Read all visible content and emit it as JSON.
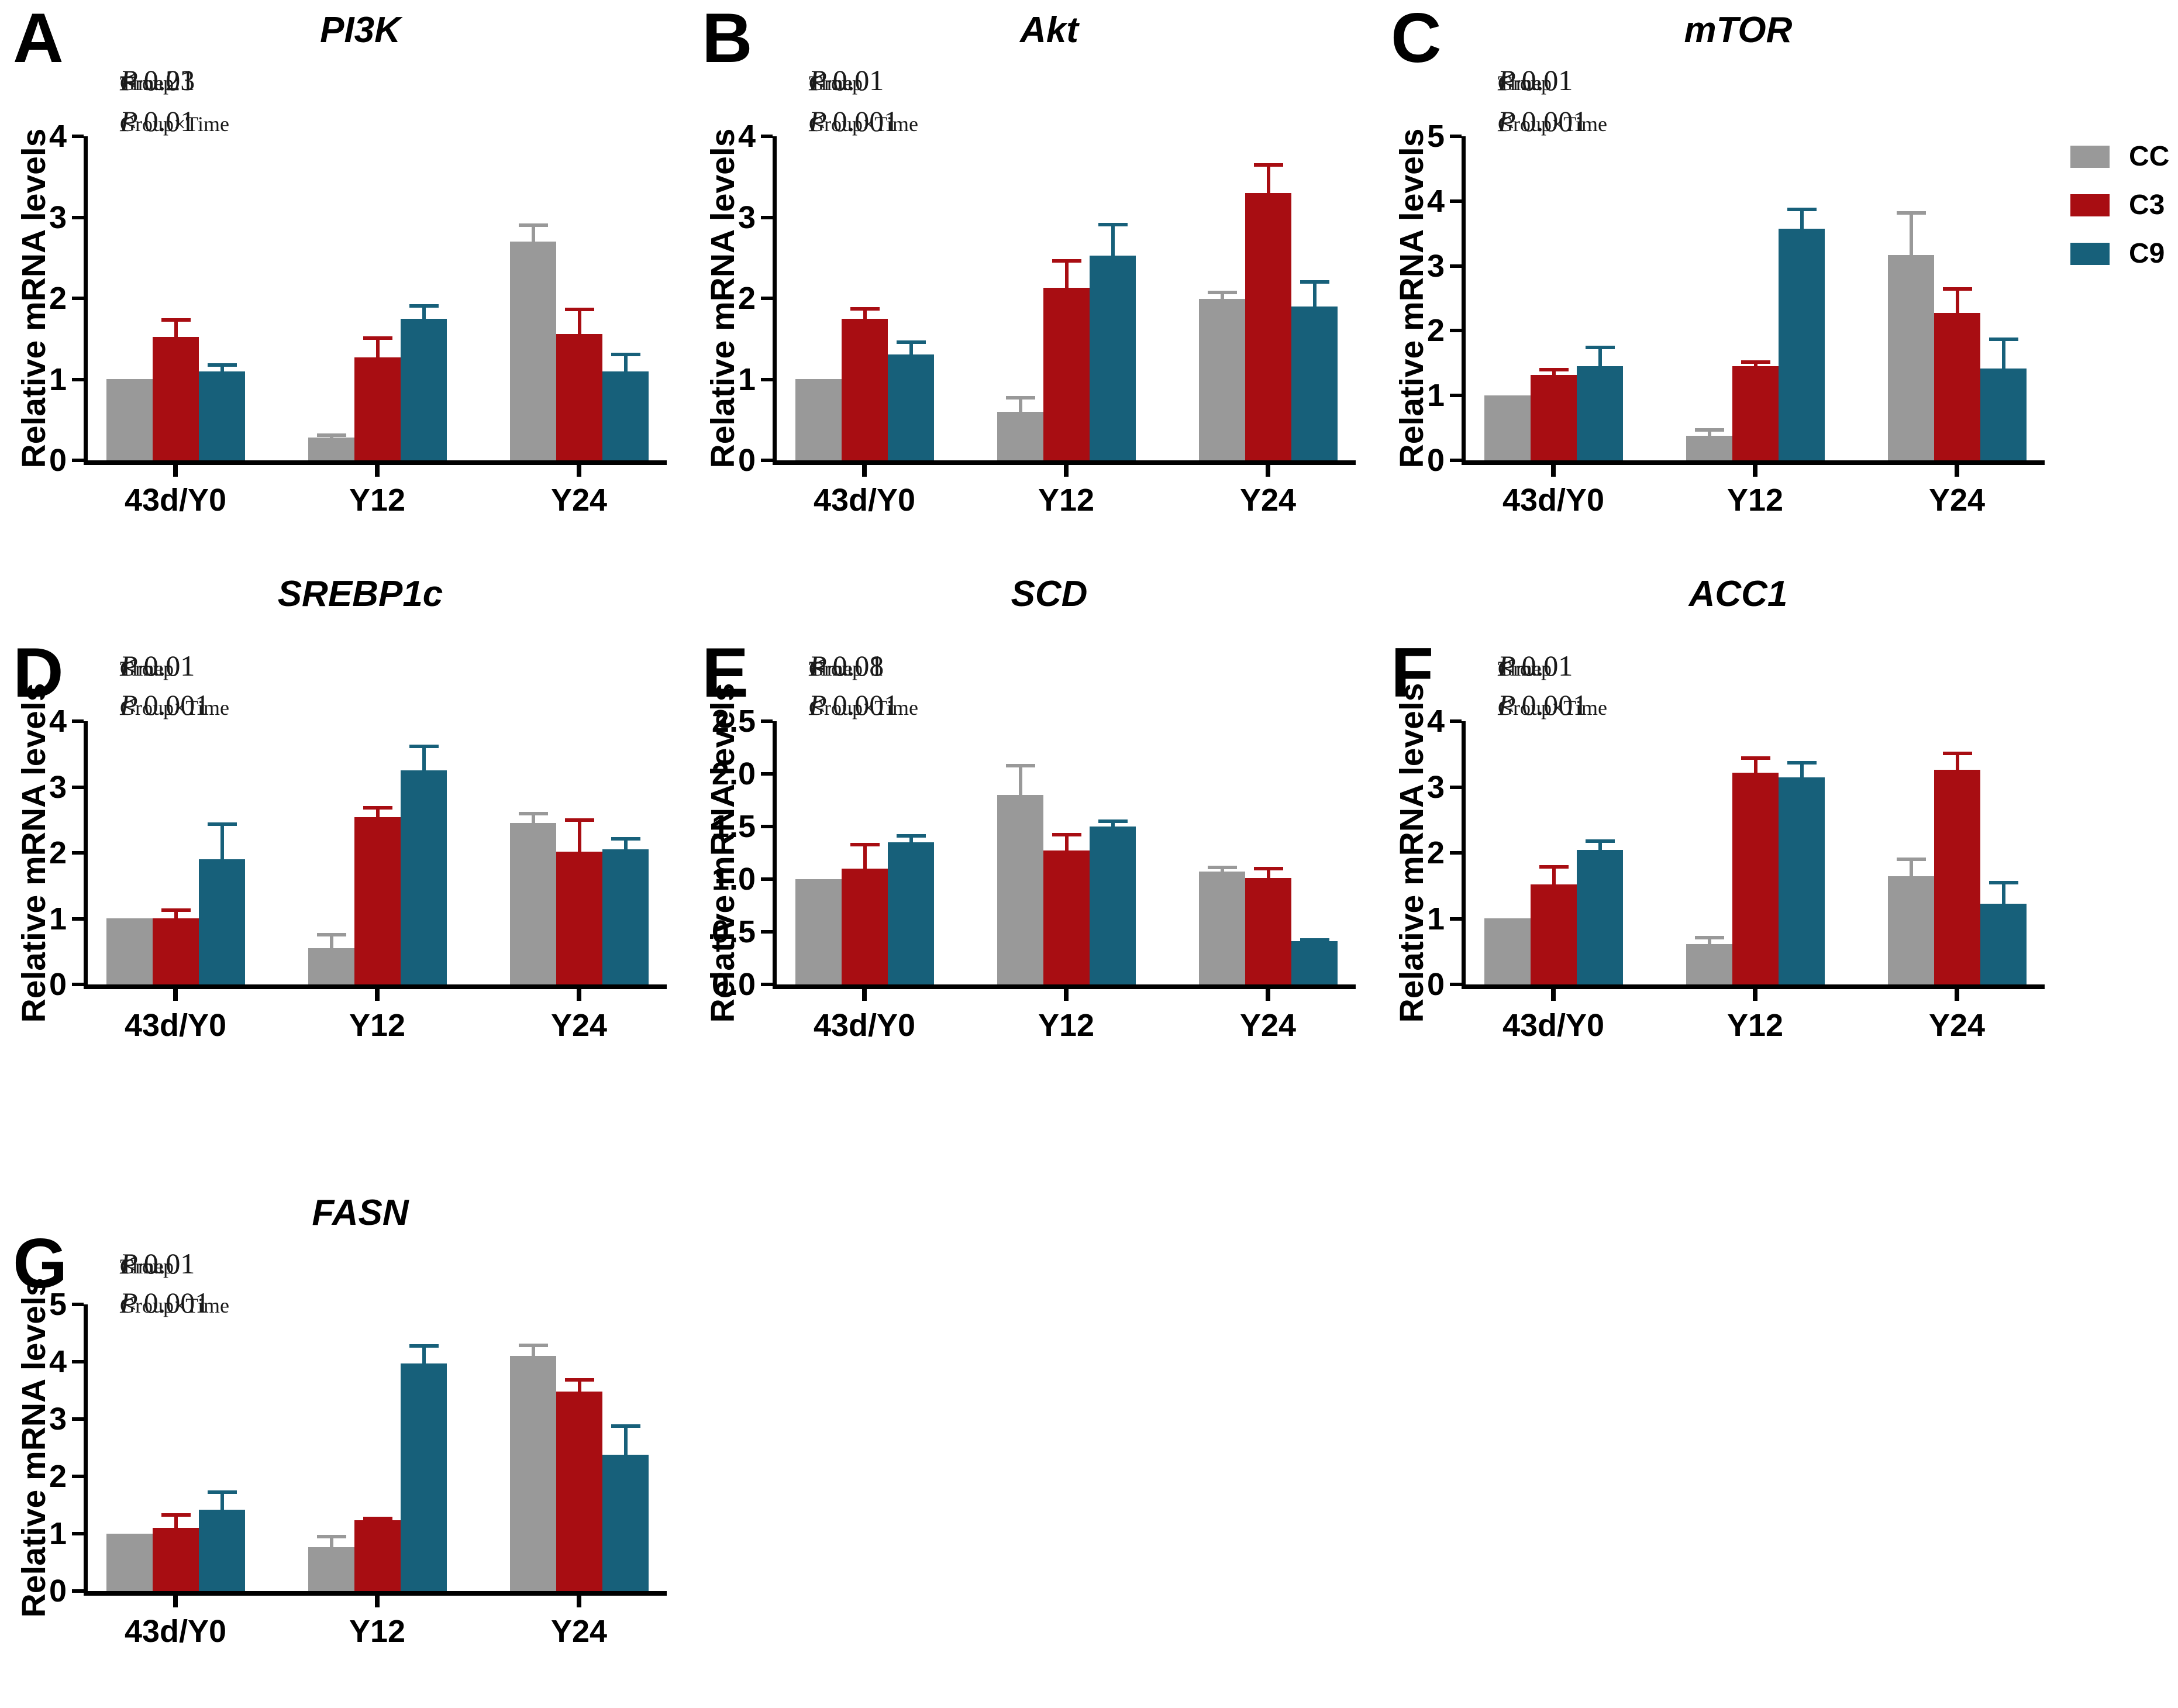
{
  "figure": {
    "p_subscripts": {
      "group": "Group",
      "time": "Time",
      "interaction": "Group×Time"
    },
    "p_symbol": "P"
  },
  "legend": {
    "items": [
      {
        "label": "CC",
        "color": "#999999"
      },
      {
        "label": "C3",
        "color": "#A80D12"
      },
      {
        "label": "C9",
        "color": "#17607A"
      }
    ]
  },
  "chart_data": [
    {
      "type": "bar",
      "letter": "A",
      "title": "PI3K",
      "ylabel": "Relative mRNA levels",
      "ylim": [
        0,
        4
      ],
      "ytick_step": 1,
      "ytick_labels": [
        "0",
        "1",
        "2",
        "3",
        "4"
      ],
      "categories": [
        "43d/Y0",
        "Y12",
        "Y24"
      ],
      "p_values": {
        "group": "< 0.01",
        "time": "= 0.23",
        "interaction": "< 0.01"
      },
      "series": [
        {
          "name": "CC",
          "color": "#999999",
          "values": [
            1.0,
            0.28,
            2.7
          ],
          "errors": [
            0,
            0.03,
            0.2
          ]
        },
        {
          "name": "C3",
          "color": "#A80D12",
          "values": [
            1.52,
            1.27,
            1.56
          ],
          "errors": [
            0.21,
            0.24,
            0.3
          ]
        },
        {
          "name": "C9",
          "color": "#17607A",
          "values": [
            1.1,
            1.75,
            1.1
          ],
          "errors": [
            0.08,
            0.16,
            0.21
          ]
        }
      ]
    },
    {
      "type": "bar",
      "letter": "B",
      "title": "Akt",
      "ylabel": "Relative mRNA levels",
      "ylim": [
        0,
        4
      ],
      "ytick_step": 1,
      "ytick_labels": [
        "0",
        "1",
        "2",
        "3",
        "4"
      ],
      "categories": [
        "43d/Y0",
        "Y12",
        "Y24"
      ],
      "p_values": {
        "group": "< 0.01",
        "time": "< 0.01",
        "interaction": "< 0.001"
      },
      "series": [
        {
          "name": "CC",
          "color": "#999999",
          "values": [
            1.0,
            0.6,
            1.99
          ],
          "errors": [
            0,
            0.17,
            0.08
          ]
        },
        {
          "name": "C3",
          "color": "#A80D12",
          "values": [
            1.75,
            2.13,
            3.3
          ],
          "errors": [
            0.12,
            0.33,
            0.35
          ]
        },
        {
          "name": "C9",
          "color": "#17607A",
          "values": [
            1.31,
            2.53,
            1.9
          ],
          "errors": [
            0.15,
            0.38,
            0.3
          ]
        }
      ]
    },
    {
      "type": "bar",
      "letter": "C",
      "title": "mTOR",
      "ylabel": "Relative mRNA levels",
      "ylim": [
        0,
        5
      ],
      "ytick_step": 1,
      "ytick_labels": [
        "0",
        "1",
        "2",
        "3",
        "4",
        "5"
      ],
      "categories": [
        "43d/Y0",
        "Y12",
        "Y24"
      ],
      "p_values": {
        "group": "< 0.01",
        "time": "< 0.01",
        "interaction": "< 0.001"
      },
      "series": [
        {
          "name": "CC",
          "color": "#999999",
          "values": [
            1.0,
            0.38,
            3.17
          ],
          "errors": [
            0,
            0.09,
            0.65
          ]
        },
        {
          "name": "C3",
          "color": "#A80D12",
          "values": [
            1.32,
            1.45,
            2.27
          ],
          "errors": [
            0.08,
            0.06,
            0.37
          ]
        },
        {
          "name": "C9",
          "color": "#17607A",
          "values": [
            1.45,
            3.57,
            1.42
          ],
          "errors": [
            0.29,
            0.3,
            0.45
          ]
        }
      ]
    },
    {
      "type": "bar",
      "letter": "D",
      "title": "SREBP1c",
      "ylabel": "Relative mRNA levels",
      "ylim": [
        0,
        4
      ],
      "ytick_step": 1,
      "ytick_labels": [
        "0",
        "1",
        "2",
        "3",
        "4"
      ],
      "categories": [
        "43d/Y0",
        "Y12",
        "Y24"
      ],
      "p_values": {
        "group": "< 0.01",
        "time": "< 0.01",
        "interaction": "< 0.001"
      },
      "series": [
        {
          "name": "CC",
          "color": "#999999",
          "values": [
            1.0,
            0.55,
            2.45
          ],
          "errors": [
            0,
            0.2,
            0.14
          ]
        },
        {
          "name": "C3",
          "color": "#A80D12",
          "values": [
            1.0,
            2.54,
            2.02
          ],
          "errors": [
            0.12,
            0.14,
            0.48
          ]
        },
        {
          "name": "C9",
          "color": "#17607A",
          "values": [
            1.9,
            3.25,
            2.05
          ],
          "errors": [
            0.53,
            0.36,
            0.16
          ]
        }
      ]
    },
    {
      "type": "bar",
      "letter": "E",
      "title": "SCD",
      "ylabel": "Relative mRNA levels",
      "ylim": [
        0,
        2.5
      ],
      "ytick_step": 0.5,
      "ytick_labels": [
        "0.0",
        "0.5",
        "1.0",
        "1.5",
        "2.0",
        "2.5"
      ],
      "categories": [
        "43d/Y0",
        "Y12",
        "Y24"
      ],
      "p_values": {
        "group": "< 0.01",
        "time": "= 0.08",
        "interaction": "< 0.001"
      },
      "series": [
        {
          "name": "CC",
          "color": "#999999",
          "values": [
            1.0,
            1.8,
            1.07
          ],
          "errors": [
            0,
            0.28,
            0.04
          ]
        },
        {
          "name": "C3",
          "color": "#A80D12",
          "values": [
            1.1,
            1.27,
            1.01
          ],
          "errors": [
            0.23,
            0.15,
            0.09
          ]
        },
        {
          "name": "C9",
          "color": "#17607A",
          "values": [
            1.35,
            1.5,
            0.41
          ],
          "errors": [
            0.06,
            0.05,
            0.01
          ]
        }
      ]
    },
    {
      "type": "bar",
      "letter": "F",
      "title": "ACC1",
      "ylabel": "Relative mRNA levels",
      "ylim": [
        0,
        4
      ],
      "ytick_step": 1,
      "ytick_labels": [
        "0",
        "1",
        "2",
        "3",
        "4"
      ],
      "categories": [
        "43d/Y0",
        "Y12",
        "Y24"
      ],
      "p_values": {
        "group": "< 0.01",
        "time": "< 0.01",
        "interaction": "< 0.001"
      },
      "series": [
        {
          "name": "CC",
          "color": "#999999",
          "values": [
            1.0,
            0.61,
            1.64
          ],
          "errors": [
            0,
            0.1,
            0.26
          ]
        },
        {
          "name": "C3",
          "color": "#A80D12",
          "values": [
            1.52,
            3.22,
            3.26
          ],
          "errors": [
            0.27,
            0.22,
            0.25
          ]
        },
        {
          "name": "C9",
          "color": "#17607A",
          "values": [
            2.04,
            3.15,
            1.23
          ],
          "errors": [
            0.13,
            0.22,
            0.32
          ]
        }
      ]
    },
    {
      "type": "bar",
      "letter": "G",
      "title": "FASN",
      "ylabel": "Relative mRNA levels",
      "ylim": [
        0,
        5
      ],
      "ytick_step": 1,
      "ytick_labels": [
        "0",
        "1",
        "2",
        "3",
        "4",
        "5"
      ],
      "categories": [
        "43d/Y0",
        "Y12",
        "Y24"
      ],
      "p_values": {
        "group": "< 0.01",
        "time": "< 0.01",
        "interaction": "< 0.001"
      },
      "series": [
        {
          "name": "CC",
          "color": "#999999",
          "values": [
            1.0,
            0.77,
            4.1
          ],
          "errors": [
            0,
            0.18,
            0.18
          ]
        },
        {
          "name": "C3",
          "color": "#A80D12",
          "values": [
            1.1,
            1.23,
            3.48
          ],
          "errors": [
            0.22,
            0.03,
            0.2
          ]
        },
        {
          "name": "C9",
          "color": "#17607A",
          "values": [
            1.42,
            3.97,
            2.38
          ],
          "errors": [
            0.31,
            0.31,
            0.5
          ]
        }
      ]
    }
  ]
}
